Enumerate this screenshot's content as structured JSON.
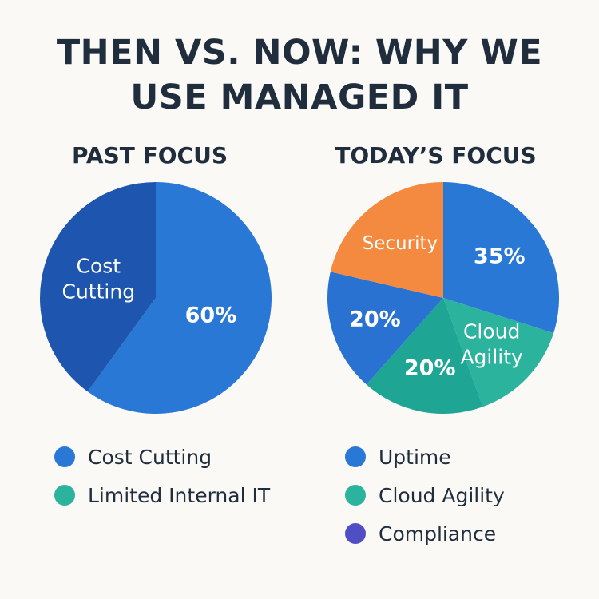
{
  "title_line1": "THEN VS. NOW: WHY WE",
  "title_line2": "USE MANAGED IT",
  "chart_data": [
    {
      "type": "pie",
      "title": "PAST FOCUS",
      "slices": [
        {
          "label": "",
          "value": 60,
          "display": "60%",
          "color": "#2a78d6",
          "text_color": "#ffffff"
        },
        {
          "label": "Cost Cutting",
          "value": 40,
          "display": "Cost Cutting",
          "color": "#1e55ae",
          "text_color": "#ffffff"
        }
      ],
      "legend": [
        {
          "label": "Cost Cutting",
          "color": "#2a78d6"
        },
        {
          "label": "Limited Internal IT",
          "color": "#2bb39e"
        }
      ],
      "legend_position": "bottom"
    },
    {
      "type": "pie",
      "title": "TODAY’S FOCUS",
      "slices": [
        {
          "label": "",
          "value": 35,
          "display": "35%",
          "color": "#2a78d6",
          "text_color": "#ffffff"
        },
        {
          "label": "Cloud Agility",
          "value": 17,
          "display": "Cloud Agility",
          "color": "#2bb39e",
          "text_color": "#ffffff"
        },
        {
          "label": "",
          "value": 20,
          "display": "20%",
          "color": "#1ea594",
          "text_color": "#ffffff"
        },
        {
          "label": "",
          "value": 20,
          "display": "20%",
          "color": "#2a72d2",
          "text_color": "#ffffff"
        },
        {
          "label": "Security",
          "value": 25,
          "display": "Security",
          "color": "#f48a3f",
          "text_color": "#ffffff"
        }
      ],
      "legend": [
        {
          "label": "Uptime",
          "color": "#2a78d6"
        },
        {
          "label": "Cloud Agility",
          "color": "#2bb39e"
        },
        {
          "label": "Compliance",
          "color": "#4f4fc3"
        }
      ],
      "legend_position": "bottom"
    }
  ]
}
